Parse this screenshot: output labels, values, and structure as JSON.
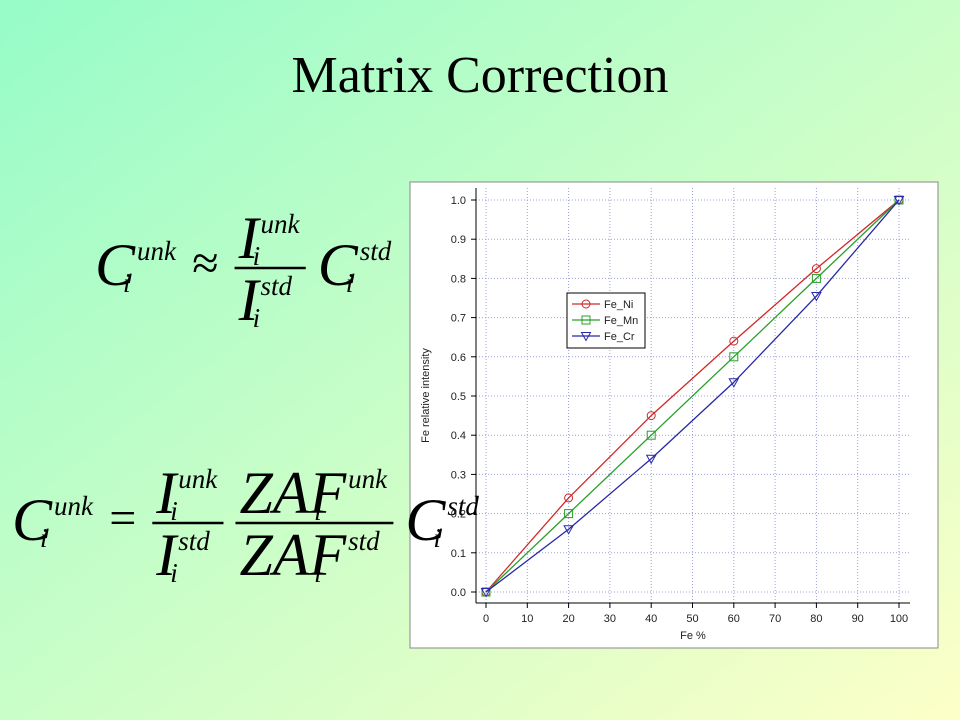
{
  "slide_title": "Matrix Correction",
  "equations": [
    {
      "lhs": {
        "base": "C",
        "sup": "unk",
        "sub": "i"
      },
      "rel": "≈",
      "fractions": [
        {
          "num": {
            "base": "I",
            "sup": "unk",
            "sub": "i"
          },
          "den": {
            "base": "I",
            "sup": "std",
            "sub": "i"
          }
        }
      ],
      "rhs": {
        "base": "C",
        "sup": "std",
        "sub": "i"
      }
    },
    {
      "lhs": {
        "base": "C",
        "sup": "unk",
        "sub": "i"
      },
      "rel": "=",
      "fractions": [
        {
          "num": {
            "base": "I",
            "sup": "unk",
            "sub": "i"
          },
          "den": {
            "base": "I",
            "sup": "std",
            "sub": "i"
          }
        },
        {
          "num": {
            "base": "ZAF",
            "sup": "unk",
            "sub": "i"
          },
          "den": {
            "base": "ZAF",
            "sup": "std",
            "sub": "i"
          }
        }
      ],
      "rhs": {
        "base": "C",
        "sup": "std",
        "sub": "i"
      }
    }
  ],
  "chart_data": {
    "type": "line",
    "x_label": "Fe %",
    "y_label": "Fe relative intensity",
    "x": [
      0,
      20,
      40,
      60,
      80,
      100
    ],
    "series": [
      {
        "name": "Fe_Ni",
        "color": "#d02828",
        "marker": "circle",
        "values": [
          0,
          0.24,
          0.45,
          0.64,
          0.825,
          1.0
        ]
      },
      {
        "name": "Fe_Mn",
        "color": "#28a028",
        "marker": "square",
        "values": [
          0,
          0.2,
          0.4,
          0.6,
          0.8,
          1.0
        ]
      },
      {
        "name": "Fe_Cr",
        "color": "#2828a8",
        "marker": "triangle-down",
        "values": [
          0,
          0.16,
          0.34,
          0.535,
          0.755,
          1.0
        ]
      }
    ],
    "xlim": [
      0,
      100
    ],
    "ylim": [
      0,
      1
    ],
    "xticks": [
      0,
      10,
      20,
      30,
      40,
      50,
      60,
      70,
      80,
      90,
      100
    ],
    "yticks": [
      {
        "value": 0,
        "label": "0.0"
      },
      0.1,
      0.2,
      0.3,
      0.4,
      0.5,
      0.6,
      0.7,
      0.8,
      0.9,
      {
        "value": 1,
        "label": "1.0"
      }
    ],
    "grid": true
  }
}
